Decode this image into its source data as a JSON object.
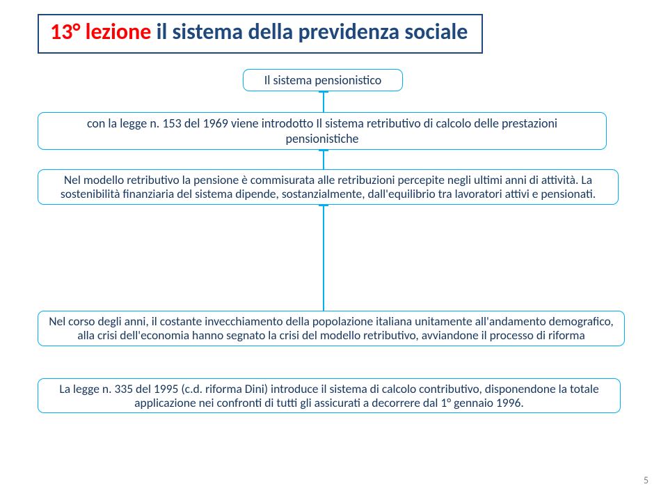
{
  "colors": {
    "title_border": "#1f497d",
    "title_blue": "#1f497d",
    "title_red": "#ff0000",
    "box_border": "#00b0f0",
    "box_text": "#17365d",
    "connector": "#00b0f0",
    "page_num": "#7f7f7f"
  },
  "title": {
    "red_part": "13° lezione",
    "blue_part": " il sistema della previdenza sociale"
  },
  "boxes": {
    "b1": "Il sistema pensionistico",
    "b2": "con la legge n. 153 del 1969 viene introdotto Il sistema retributivo di calcolo delle prestazioni pensionistiche",
    "b3": "Nel modello retributivo la pensione è commisurata alle retribuzioni percepite negli ultimi anni di attività. La sostenibilità finanziaria del sistema dipende, sostanzialmente, dall'equilibrio tra lavoratori attivi e pensionati.",
    "b4": "Nel corso degli anni, il costante invecchiamento della popolazione italiana unitamente all'andamento demografico, alla crisi dell'economia  hanno segnato la crisi del modello retributivo, avviandone il processo di riforma",
    "b5": "La legge n. 335 del 1995 (c.d. riforma Dini) introduce il sistema di calcolo contributivo, disponendone la totale applicazione nei confronti di tutti gli assicurati a decorrere dal 1° gennaio 1996."
  },
  "page_number": "5"
}
